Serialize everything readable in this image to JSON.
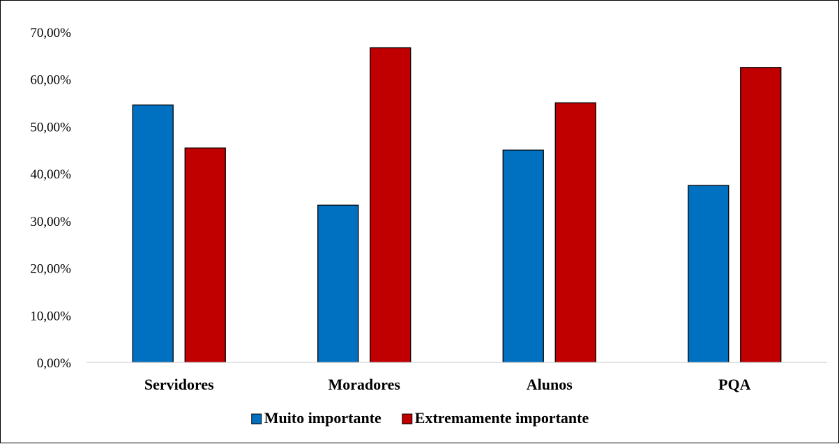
{
  "chart_data": {
    "type": "bar",
    "categories": [
      "Servidores",
      "Moradores",
      "Alunos",
      "PQA"
    ],
    "series": [
      {
        "name": "Muito importante",
        "color": "#0070C0",
        "values": [
          54.55,
          33.33,
          45.0,
          37.5
        ]
      },
      {
        "name": "Extremamente importante",
        "color": "#C00000",
        "values": [
          45.45,
          66.67,
          55.0,
          62.5
        ]
      }
    ],
    "ylim": [
      0,
      70
    ],
    "yticks": [
      0,
      10,
      20,
      30,
      40,
      50,
      60,
      70
    ],
    "ytick_labels": [
      "0,00%",
      "10,00%",
      "20,00%",
      "30,00%",
      "40,00%",
      "50,00%",
      "60,00%",
      "70,00%"
    ],
    "grid": false,
    "legend_position": "bottom"
  }
}
